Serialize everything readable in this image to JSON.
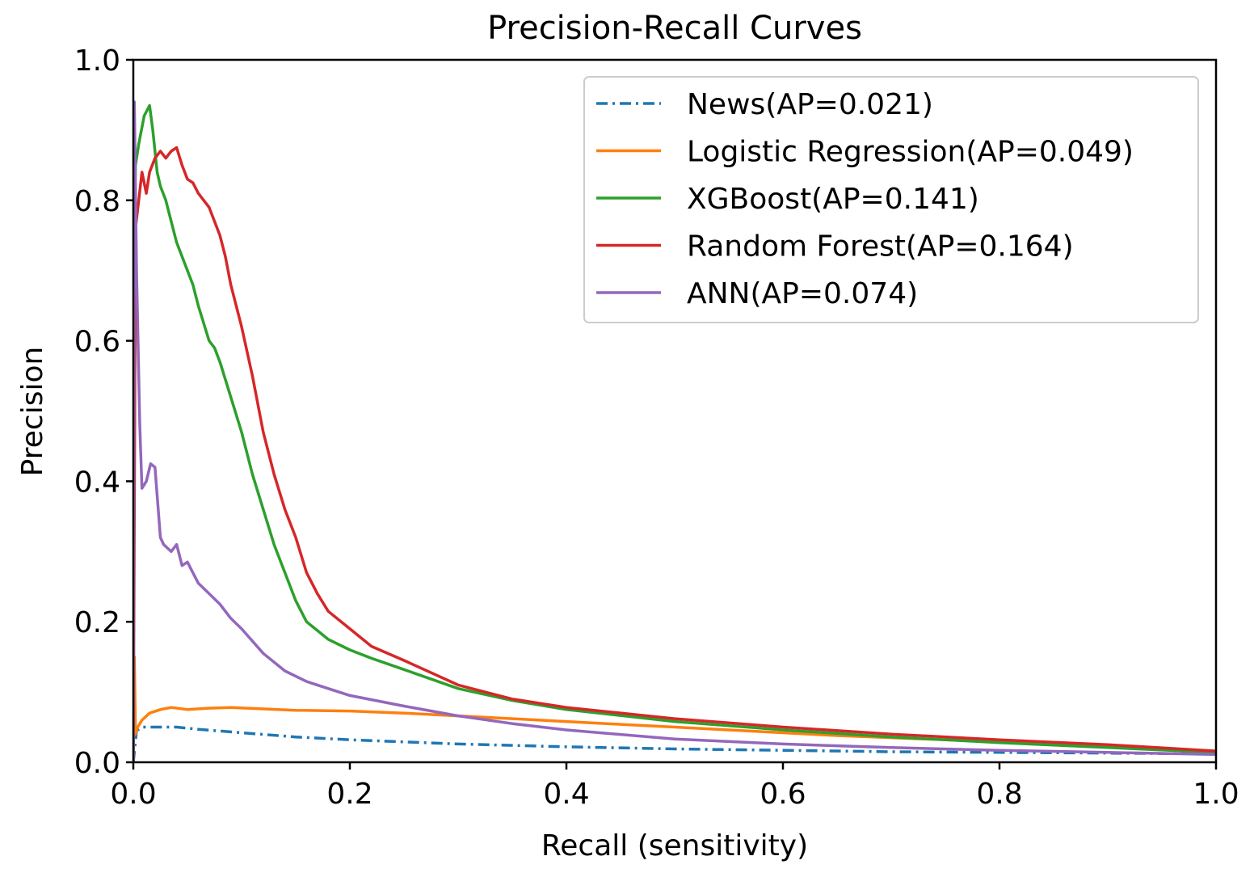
{
  "chart_data": {
    "type": "line",
    "title": "Precision-Recall Curves",
    "xlabel": "Recall (sensitivity)",
    "ylabel": "Precision",
    "xlim": [
      0.0,
      1.0
    ],
    "ylim": [
      0.0,
      1.0
    ],
    "xticks": [
      {
        "value": 0.0,
        "label": "0.0"
      },
      {
        "value": 0.2,
        "label": "0.2"
      },
      {
        "value": 0.4,
        "label": "0.4"
      },
      {
        "value": 0.6,
        "label": "0.6"
      },
      {
        "value": 0.8,
        "label": "0.8"
      },
      {
        "value": 1.0,
        "label": "1.0"
      }
    ],
    "yticks": [
      {
        "value": 0.0,
        "label": "0.0"
      },
      {
        "value": 0.2,
        "label": "0.2"
      },
      {
        "value": 0.4,
        "label": "0.4"
      },
      {
        "value": 0.6,
        "label": "0.6"
      },
      {
        "value": 0.8,
        "label": "0.8"
      },
      {
        "value": 1.0,
        "label": "1.0"
      }
    ],
    "grid": false,
    "legend_position": "top-right",
    "series": [
      {
        "name": "News(AP=0.021)",
        "color": "#1f77b4",
        "style": "dashdot",
        "x": [
          0.0,
          0.003,
          0.008,
          0.02,
          0.04,
          0.06,
          0.1,
          0.15,
          0.2,
          0.3,
          0.4,
          0.5,
          0.6,
          0.7,
          0.8,
          0.9,
          1.0
        ],
        "y": [
          0.0,
          0.045,
          0.05,
          0.05,
          0.05,
          0.047,
          0.042,
          0.036,
          0.032,
          0.026,
          0.022,
          0.019,
          0.017,
          0.015,
          0.014,
          0.013,
          0.012
        ]
      },
      {
        "name": "Logistic Regression(AP=0.049)",
        "color": "#ff7f0e",
        "style": "solid",
        "x": [
          0.0,
          0.001,
          0.002,
          0.004,
          0.008,
          0.015,
          0.025,
          0.035,
          0.05,
          0.07,
          0.09,
          0.12,
          0.15,
          0.2,
          0.25,
          0.3,
          0.35,
          0.4,
          0.45,
          0.5,
          0.55,
          0.6,
          0.65,
          0.7,
          0.75,
          0.8,
          0.85,
          0.9,
          0.95,
          1.0
        ],
        "y": [
          0.0,
          0.15,
          0.04,
          0.05,
          0.06,
          0.07,
          0.075,
          0.078,
          0.075,
          0.077,
          0.078,
          0.076,
          0.074,
          0.073,
          0.07,
          0.066,
          0.062,
          0.058,
          0.054,
          0.05,
          0.046,
          0.042,
          0.038,
          0.035,
          0.032,
          0.029,
          0.026,
          0.023,
          0.019,
          0.015
        ]
      },
      {
        "name": "XGBoost(AP=0.141)",
        "color": "#2ca02c",
        "style": "solid",
        "x": [
          0.0,
          0.002,
          0.005,
          0.01,
          0.015,
          0.018,
          0.022,
          0.025,
          0.03,
          0.035,
          0.04,
          0.05,
          0.055,
          0.06,
          0.07,
          0.075,
          0.08,
          0.09,
          0.1,
          0.11,
          0.12,
          0.13,
          0.14,
          0.15,
          0.16,
          0.18,
          0.2,
          0.22,
          0.25,
          0.3,
          0.35,
          0.4,
          0.5,
          0.6,
          0.7,
          0.8,
          0.9,
          1.0
        ],
        "y": [
          0.7,
          0.85,
          0.88,
          0.92,
          0.935,
          0.9,
          0.84,
          0.82,
          0.8,
          0.77,
          0.74,
          0.7,
          0.68,
          0.65,
          0.6,
          0.59,
          0.57,
          0.52,
          0.47,
          0.41,
          0.36,
          0.31,
          0.27,
          0.23,
          0.2,
          0.175,
          0.16,
          0.148,
          0.132,
          0.105,
          0.088,
          0.075,
          0.058,
          0.046,
          0.036,
          0.028,
          0.021,
          0.014
        ]
      },
      {
        "name": "Random Forest(AP=0.164)",
        "color": "#d62728",
        "style": "solid",
        "x": [
          0.0,
          0.002,
          0.005,
          0.008,
          0.012,
          0.015,
          0.02,
          0.025,
          0.03,
          0.035,
          0.04,
          0.045,
          0.05,
          0.055,
          0.06,
          0.065,
          0.07,
          0.075,
          0.08,
          0.085,
          0.09,
          0.1,
          0.11,
          0.12,
          0.13,
          0.14,
          0.15,
          0.16,
          0.17,
          0.18,
          0.2,
          0.22,
          0.25,
          0.3,
          0.35,
          0.4,
          0.5,
          0.6,
          0.7,
          0.8,
          0.9,
          1.0
        ],
        "y": [
          0.0,
          0.76,
          0.8,
          0.84,
          0.81,
          0.84,
          0.86,
          0.87,
          0.86,
          0.87,
          0.875,
          0.85,
          0.83,
          0.825,
          0.81,
          0.8,
          0.79,
          0.77,
          0.75,
          0.72,
          0.68,
          0.62,
          0.55,
          0.47,
          0.41,
          0.36,
          0.32,
          0.27,
          0.24,
          0.215,
          0.19,
          0.165,
          0.145,
          0.11,
          0.09,
          0.078,
          0.062,
          0.05,
          0.04,
          0.032,
          0.025,
          0.016
        ]
      },
      {
        "name": "ANN(AP=0.074)",
        "color": "#9467bd",
        "style": "solid",
        "x": [
          0.0,
          0.001,
          0.003,
          0.006,
          0.008,
          0.012,
          0.016,
          0.02,
          0.025,
          0.028,
          0.035,
          0.04,
          0.045,
          0.05,
          0.055,
          0.06,
          0.07,
          0.08,
          0.09,
          0.1,
          0.12,
          0.14,
          0.16,
          0.18,
          0.2,
          0.25,
          0.3,
          0.35,
          0.4,
          0.5,
          0.6,
          0.7,
          0.8,
          0.9,
          1.0
        ],
        "y": [
          0.0,
          0.94,
          0.7,
          0.48,
          0.39,
          0.4,
          0.425,
          0.42,
          0.32,
          0.31,
          0.3,
          0.31,
          0.28,
          0.285,
          0.27,
          0.255,
          0.24,
          0.225,
          0.205,
          0.19,
          0.155,
          0.13,
          0.115,
          0.105,
          0.095,
          0.08,
          0.066,
          0.055,
          0.046,
          0.033,
          0.026,
          0.021,
          0.017,
          0.014,
          0.011
        ]
      }
    ]
  }
}
